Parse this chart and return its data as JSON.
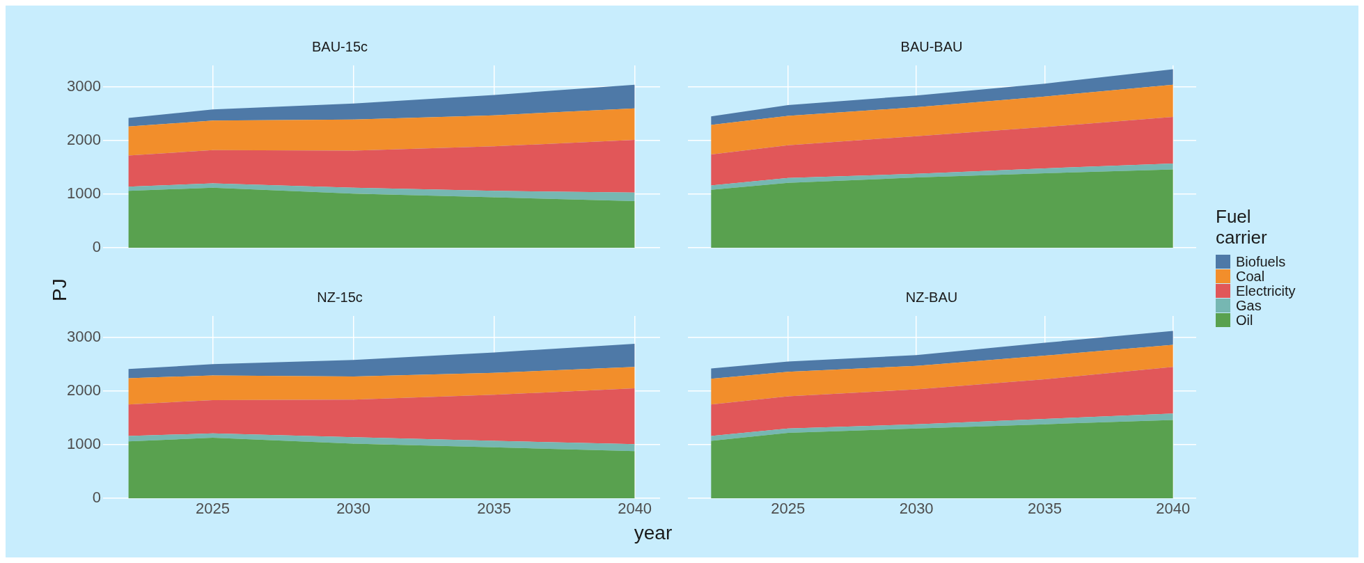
{
  "chart_data": [
    {
      "type": "area",
      "title": "BAU-15c",
      "ylabel": "PJ",
      "stacked": true,
      "legend": "right",
      "legend_title": "Fuel carrier",
      "grid": true,
      "tick_labels": "y",
      "x": [
        2022,
        2025,
        2030,
        2035,
        2040
      ],
      "xlim": [
        2021.1,
        2040.9
      ],
      "xticks": [
        2025,
        2030,
        2035,
        2040
      ],
      "ylim": [
        0,
        3400
      ],
      "yticks": [
        0,
        1000,
        2000,
        3000
      ],
      "series": [
        {
          "name": "Oil",
          "color": "#59a14f",
          "values": [
            1060,
            1120,
            1010,
            940,
            870
          ]
        },
        {
          "name": "Gas",
          "color": "#76b7b2",
          "values": [
            80,
            80,
            110,
            120,
            160
          ]
        },
        {
          "name": "Electricity",
          "color": "#e15759",
          "values": [
            580,
            620,
            690,
            830,
            980
          ]
        },
        {
          "name": "Coal",
          "color": "#f28e2b",
          "values": [
            540,
            550,
            580,
            580,
            590
          ]
        },
        {
          "name": "Biofuels",
          "color": "#4e79a7",
          "values": [
            160,
            210,
            300,
            380,
            440
          ]
        }
      ]
    },
    {
      "type": "area",
      "title": "BAU-BAU",
      "stacked": true,
      "grid": true,
      "tick_labels": false,
      "x": [
        2022,
        2025,
        2030,
        2035,
        2040
      ],
      "xlim": [
        2021.1,
        2040.9
      ],
      "xticks": [
        2025,
        2030,
        2035,
        2040
      ],
      "ylim": [
        0,
        3400
      ],
      "yticks": [
        0,
        1000,
        2000,
        3000
      ],
      "series": [
        {
          "color": "#59a14f",
          "values": [
            1080,
            1210,
            1310,
            1390,
            1460
          ]
        },
        {
          "color": "#76b7b2",
          "values": [
            80,
            90,
            70,
            90,
            110
          ]
        },
        {
          "color": "#e15759",
          "values": [
            580,
            610,
            700,
            770,
            870
          ]
        },
        {
          "color": "#f28e2b",
          "values": [
            550,
            550,
            540,
            570,
            600
          ]
        },
        {
          "color": "#4e79a7",
          "values": [
            160,
            200,
            220,
            240,
            290
          ]
        }
      ]
    },
    {
      "type": "area",
      "title": "NZ-15c",
      "xlabel": "year",
      "stacked": true,
      "grid": true,
      "x": [
        2022,
        2025,
        2030,
        2035,
        2040
      ],
      "xlim": [
        2021.1,
        2040.9
      ],
      "xticks": [
        2025,
        2030,
        2035,
        2040
      ],
      "ylim": [
        0,
        3400
      ],
      "yticks": [
        0,
        1000,
        2000,
        3000
      ],
      "series": [
        {
          "color": "#59a14f",
          "values": [
            1060,
            1130,
            1020,
            950,
            880
          ]
        },
        {
          "color": "#76b7b2",
          "values": [
            100,
            80,
            120,
            120,
            130
          ]
        },
        {
          "color": "#e15759",
          "values": [
            590,
            620,
            700,
            860,
            1040
          ]
        },
        {
          "color": "#f28e2b",
          "values": [
            490,
            460,
            430,
            410,
            400
          ]
        },
        {
          "color": "#4e79a7",
          "values": [
            170,
            210,
            310,
            380,
            430
          ]
        }
      ]
    },
    {
      "type": "area",
      "title": "NZ-BAU",
      "stacked": true,
      "grid": true,
      "tick_labels": "x",
      "x": [
        2022,
        2025,
        2030,
        2035,
        2040
      ],
      "xlim": [
        2021.1,
        2040.9
      ],
      "xticks": [
        2025,
        2030,
        2035,
        2040
      ],
      "ylim": [
        0,
        3400
      ],
      "yticks": [
        0,
        1000,
        2000,
        3000
      ],
      "series": [
        {
          "color": "#59a14f",
          "values": [
            1070,
            1220,
            1300,
            1380,
            1460
          ]
        },
        {
          "color": "#76b7b2",
          "values": [
            90,
            80,
            80,
            100,
            120
          ]
        },
        {
          "color": "#e15759",
          "values": [
            590,
            600,
            650,
            740,
            870
          ]
        },
        {
          "color": "#f28e2b",
          "values": [
            480,
            460,
            440,
            440,
            410
          ]
        },
        {
          "color": "#4e79a7",
          "values": [
            190,
            190,
            200,
            240,
            260
          ]
        }
      ]
    }
  ]
}
